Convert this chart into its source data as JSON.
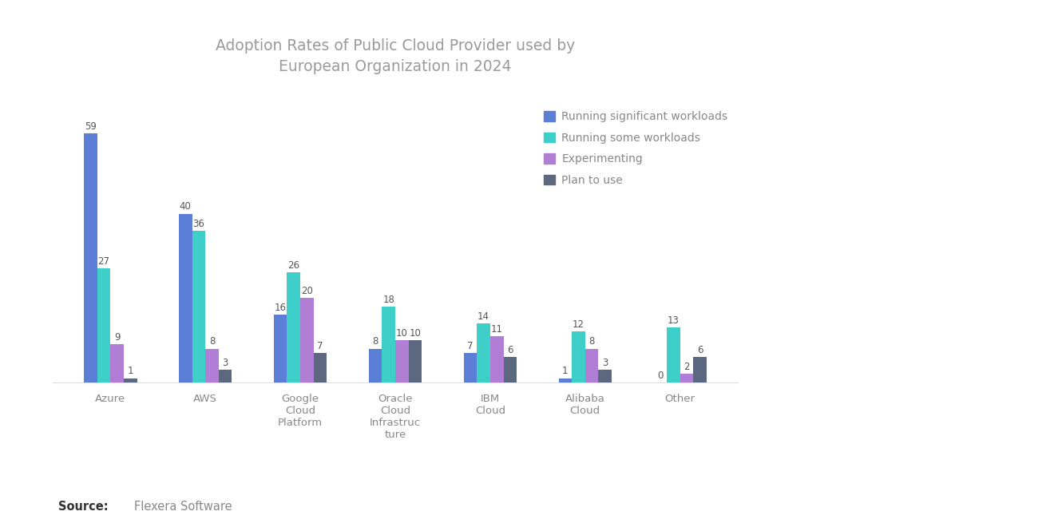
{
  "title": "Adoption Rates of Public Cloud Provider used by\nEuropean Organization in 2024",
  "categories": [
    "Azure",
    "AWS",
    "Google\nCloud\nPlatform",
    "Oracle\nCloud\nInfrastruc\nture",
    "IBM\nCloud",
    "Alibaba\nCloud",
    "Other"
  ],
  "series_names": [
    "Running significant workloads",
    "Running some workloads",
    "Experimenting",
    "Plan to use"
  ],
  "series": {
    "Running significant workloads": [
      59,
      40,
      16,
      8,
      7,
      1,
      0
    ],
    "Running some workloads": [
      27,
      36,
      26,
      18,
      14,
      12,
      13
    ],
    "Experimenting": [
      9,
      8,
      20,
      10,
      11,
      8,
      2
    ],
    "Plan to use": [
      1,
      3,
      7,
      10,
      6,
      3,
      6
    ]
  },
  "colors": {
    "Running significant workloads": "#5B7ED6",
    "Running some workloads": "#3DCFC8",
    "Experimenting": "#B07ED4",
    "Plan to use": "#5C6880"
  },
  "source": "Flexera Software",
  "background_color": "#FFFFFF",
  "title_color": "#9A9A9A",
  "label_color": "#555555",
  "xlabel_color": "#888888",
  "legend_text_color": "#888888"
}
